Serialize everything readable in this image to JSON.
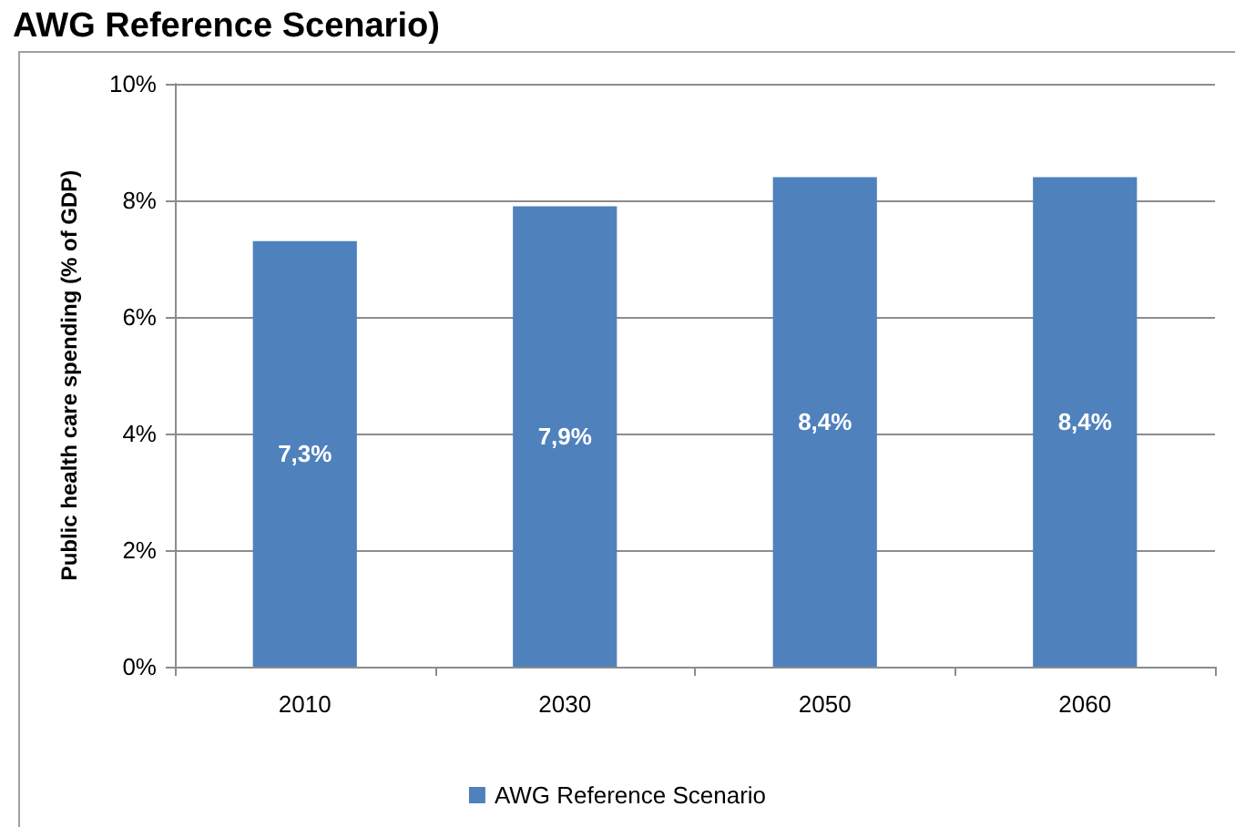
{
  "chart_data": {
    "type": "bar",
    "title": "AWG Reference Scenario)",
    "ylabel": "Public health care spending (% of GDP)",
    "categories": [
      "2010",
      "2030",
      "2050",
      "2060"
    ],
    "series": [
      {
        "name": "AWG Reference Scenario",
        "color": "#4f81bd",
        "values": [
          7.3,
          7.9,
          8.4,
          8.4
        ],
        "value_labels": [
          "7,3%",
          "7,9%",
          "8,4%",
          "8,4%"
        ]
      }
    ],
    "ylim": [
      0,
      10
    ],
    "yticks": [
      {
        "value": 0,
        "label": "0%"
      },
      {
        "value": 2,
        "label": "2%"
      },
      {
        "value": 4,
        "label": "4%"
      },
      {
        "value": 6,
        "label": "6%"
      },
      {
        "value": 8,
        "label": "8%"
      },
      {
        "value": 10,
        "label": "10%"
      }
    ],
    "grid": "y",
    "legend": "bottom"
  }
}
